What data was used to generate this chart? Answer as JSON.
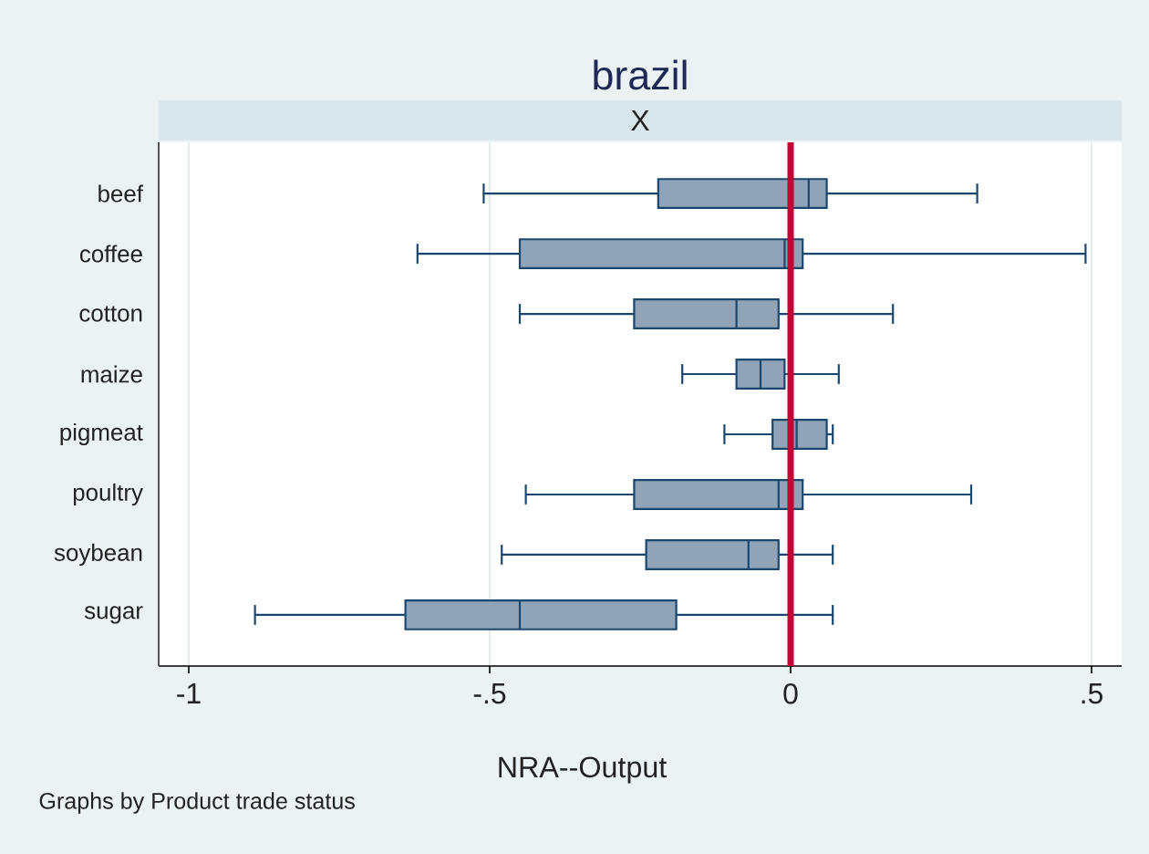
{
  "chart_data": {
    "type": "box",
    "orientation": "horizontal",
    "title": "brazil",
    "subtitle": "X",
    "xlabel": "NRA--Output",
    "annotations": [
      "Graphs by Product trade status"
    ],
    "categories": [
      "beef",
      "coffee",
      "cotton",
      "maize",
      "pigmeat",
      "poultry",
      "soybean",
      "sugar"
    ],
    "color": "#8fa4b9",
    "boxes": [
      {
        "low": -0.51,
        "q1": -0.22,
        "median": 0.03,
        "q3": 0.06,
        "high": 0.31
      },
      {
        "low": -0.62,
        "q1": -0.45,
        "median": -0.01,
        "q3": 0.02,
        "high": 0.49
      },
      {
        "low": -0.45,
        "q1": -0.26,
        "median": -0.09,
        "q3": -0.02,
        "high": 0.17
      },
      {
        "low": -0.18,
        "q1": -0.09,
        "median": -0.05,
        "q3": -0.01,
        "high": 0.08
      },
      {
        "low": -0.11,
        "q1": -0.03,
        "median": 0.01,
        "q3": 0.06,
        "high": 0.07
      },
      {
        "low": -0.44,
        "q1": -0.26,
        "median": -0.02,
        "q3": 0.02,
        "high": 0.3
      },
      {
        "low": -0.48,
        "q1": -0.24,
        "median": -0.07,
        "q3": -0.02,
        "high": 0.07
      },
      {
        "low": -0.89,
        "q1": -0.64,
        "median": -0.45,
        "q3": -0.19,
        "high": 0.07
      }
    ],
    "xlim": [
      -1.05,
      0.55
    ],
    "xticks": [
      -1,
      {
        "value": -0.5,
        "label": "-.5"
      },
      0,
      {
        "value": 0.5,
        "label": ".5"
      }
    ],
    "grid": "x",
    "ref_lines": [
      {
        "axis": "x",
        "value": 0,
        "color": "#c10534"
      }
    ]
  }
}
